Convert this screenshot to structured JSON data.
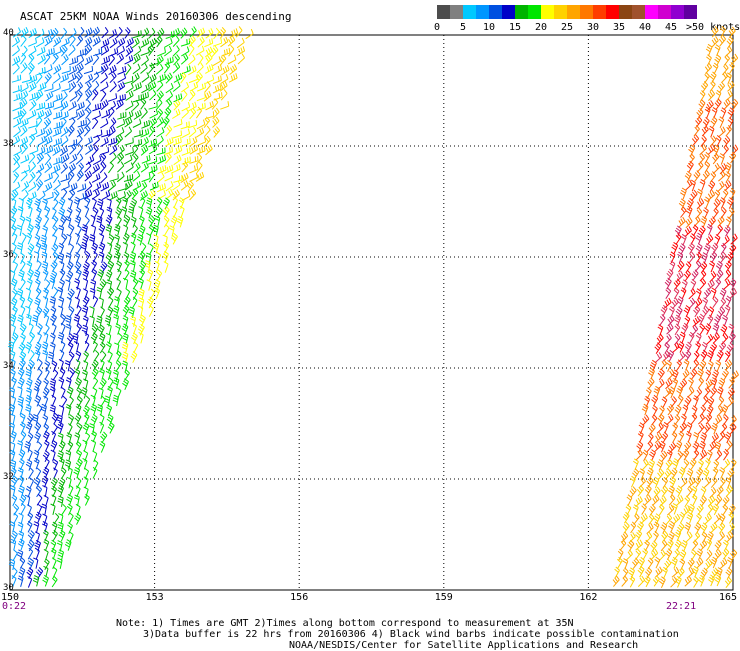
{
  "title": "ASCAT 25KM NOAA Winds 20160306 descending",
  "legend": {
    "unit": ">50 knots",
    "labels": [
      "0",
      "5",
      "10",
      "15",
      "20",
      "25",
      "30",
      "35",
      "40",
      "45"
    ],
    "colors": [
      "#4d4d4d",
      "#808080",
      "#00c8ff",
      "#0096ff",
      "#0050e0",
      "#0000c8",
      "#00b400",
      "#00e600",
      "#ffff00",
      "#ffd200",
      "#ffa500",
      "#ff7800",
      "#ff3c00",
      "#ff0000",
      "#8b4513",
      "#a0522d",
      "#ff00ff",
      "#d000d0",
      "#9000d0",
      "#6000a0"
    ]
  },
  "axes": {
    "lat_labels": [
      "40",
      "38",
      "36",
      "34",
      "32",
      "30"
    ],
    "lon_labels": [
      "150",
      "153",
      "156",
      "159",
      "162",
      "165"
    ],
    "lat_range": [
      30,
      40
    ],
    "lon_range": [
      150,
      165
    ]
  },
  "times": {
    "left": "0:22",
    "right": "22:21"
  },
  "swaths": {
    "west": {
      "colors": [
        "#00c8ff",
        "#0096ff",
        "#0050e0",
        "#0000c8",
        "#00b400",
        "#00e600",
        "#ffff00",
        "#ffd200"
      ]
    },
    "east": {
      "colors": [
        "#ffd200",
        "#ffa500",
        "#ff7800",
        "#ff3c00",
        "#ff0000",
        "#d02060",
        "#e0305a"
      ]
    }
  },
  "notes": {
    "line1": "Note: 1) Times are GMT 2)Times along bottom correspond to measurement at 35N",
    "line2": "3)Data buffer is 22 hrs from 20160306 4) Black wind barbs indicate possible contamination",
    "line3": "NOAA/NESDIS/Center for Satellite Applications and Research"
  }
}
